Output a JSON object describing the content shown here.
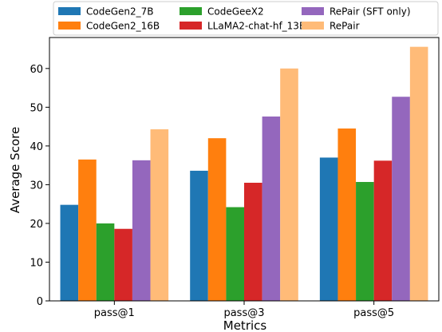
{
  "chart_data": {
    "type": "bar",
    "title": "",
    "xlabel": "Metrics",
    "ylabel": "Average Score",
    "categories": [
      "pass@1",
      "pass@3",
      "pass@5"
    ],
    "ylim": [
      0,
      68
    ],
    "yticks": [
      0,
      10,
      20,
      30,
      40,
      50,
      60
    ],
    "grid": false,
    "legend_position": "top",
    "series": [
      {
        "name": "CodeGen2_7B",
        "color": "#1f77b4",
        "values": [
          24.8,
          33.6,
          37.0
        ]
      },
      {
        "name": "CodeGen2_16B",
        "color": "#ff7f0e",
        "values": [
          36.5,
          42.0,
          44.5
        ]
      },
      {
        "name": "CodeGeeX2",
        "color": "#2ca02c",
        "values": [
          20.0,
          24.2,
          30.7
        ]
      },
      {
        "name": "LLaMA2-chat-hf_13B",
        "color": "#d62728",
        "values": [
          18.6,
          30.5,
          36.2
        ]
      },
      {
        "name": "RePair (SFT only)",
        "color": "#9467bd",
        "values": [
          36.3,
          47.6,
          52.7
        ]
      },
      {
        "name": "RePair",
        "color": "#ffbb78",
        "values": [
          44.3,
          60.0,
          65.6
        ]
      }
    ]
  }
}
